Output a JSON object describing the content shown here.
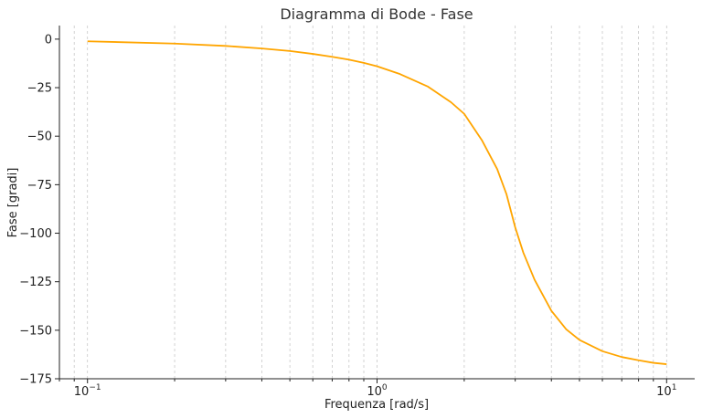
{
  "chart_data": {
    "type": "line",
    "title": "Diagramma di Bode - Fase",
    "xlabel": "Frequenza [rad/s]",
    "ylabel": "Fase [gradi]",
    "xscale": "log",
    "xlim": [
      0.08,
      12.5
    ],
    "ylim": [
      -175,
      7
    ],
    "grid": "x-minor-dashed",
    "line_color": "#FFA500",
    "x_ticks": [
      {
        "value": 0.1,
        "base": "10",
        "exp": "−1"
      },
      {
        "value": 1,
        "base": "10",
        "exp": "0"
      },
      {
        "value": 10,
        "base": "10",
        "exp": "1"
      }
    ],
    "y_ticks": [
      {
        "value": 0,
        "label": "0"
      },
      {
        "value": -25,
        "label": "−25"
      },
      {
        "value": -50,
        "label": "−50"
      },
      {
        "value": -75,
        "label": "−75"
      },
      {
        "value": -100,
        "label": "−100"
      },
      {
        "value": -125,
        "label": "−125"
      },
      {
        "value": -150,
        "label": "−150"
      },
      {
        "value": -175,
        "label": "−175"
      }
    ],
    "series": [
      {
        "x": [
          0.1,
          0.2,
          0.3,
          0.4,
          0.5,
          0.6,
          0.7,
          0.8,
          0.9,
          1.0,
          1.2,
          1.5,
          1.8,
          2.0,
          2.3,
          2.6,
          2.8,
          3.0,
          3.2,
          3.5,
          4.0,
          4.5,
          5.0,
          6.0,
          7.0,
          8.0,
          9.0,
          10.0
        ],
        "y": [
          -1.1,
          -2.3,
          -3.5,
          -4.8,
          -6.1,
          -7.6,
          -9.1,
          -10.6,
          -12.2,
          -14.0,
          -18.0,
          -24.5,
          -32.5,
          -38.5,
          -52.0,
          -67.0,
          -80.0,
          -97.0,
          -110.0,
          -124.0,
          -140.0,
          -149.5,
          -155.0,
          -160.8,
          -163.8,
          -165.5,
          -166.8,
          -167.5
        ]
      }
    ]
  }
}
